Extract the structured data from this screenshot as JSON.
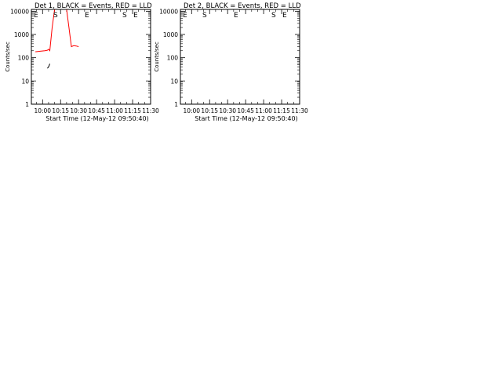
{
  "figure": {
    "ylabel": "Counts/sec",
    "xlabel": "Start Time (12-May-12 09:50:40)",
    "x_ticks": [
      "10:00",
      "10:15",
      "10:30",
      "10:45",
      "11:00",
      "11:15",
      "11:30"
    ],
    "y_ticks": [
      "1",
      "10",
      "100",
      "1000",
      "10000"
    ],
    "colors": {
      "events": "#000000",
      "lld": "#ff0000",
      "axis": "#000000",
      "background": "#ffffff"
    }
  },
  "chart_data": [
    {
      "type": "line",
      "title": "Det 1, BLACK = Events, RED = LLD",
      "xlabel": "Start Time (12-May-12 09:50:40)",
      "ylabel": "Counts/sec",
      "xlim": [
        "09:50:40",
        "11:30"
      ],
      "ylim": [
        1,
        12000
      ],
      "yscale": "log",
      "flags": [
        "E",
        "S",
        "E",
        "S",
        "E"
      ],
      "x": [
        "09:54",
        "09:58",
        "10:02",
        "10:04",
        "10:05",
        "10:06",
        "10:08",
        "10:10",
        "10:12",
        "10:14",
        "10:16",
        "10:18",
        "10:20",
        "10:22",
        "10:24",
        "10:26",
        "10:28",
        "10:30",
        "10:32",
        "10:34",
        "10:36",
        "10:40",
        "10:44",
        "10:48",
        "10:52",
        "10:56",
        "11:00",
        "11:01",
        "11:02",
        "11:03",
        "11:04",
        "11:05",
        "11:06",
        "11:08",
        "11:10",
        "11:12",
        "11:14",
        "11:15"
      ],
      "series": [
        {
          "name": "Events",
          "values": [
            null,
            null,
            null,
            35,
            40,
            55,
            null,
            null,
            null,
            null,
            null,
            null,
            null,
            null,
            null,
            null,
            null,
            null,
            null,
            null,
            null,
            null,
            null,
            null,
            null,
            null,
            null,
            null,
            null,
            null,
            null,
            null,
            null,
            null,
            null,
            null,
            null,
            null
          ]
        },
        {
          "name": "LLD",
          "values": [
            180,
            190,
            200,
            210,
            230,
            200,
            2000,
            12000,
            12000,
            12000,
            12000,
            12000,
            12000,
            2000,
            300,
            330,
            320,
            300,
            null,
            null,
            null,
            null,
            null,
            null,
            null,
            null,
            null,
            null,
            null,
            null,
            null,
            null,
            null,
            null,
            null,
            null,
            null,
            null
          ]
        }
      ]
    },
    {
      "type": "line",
      "title": "Det 2, BLACK = Events, RED = LLD",
      "xlabel": "Start Time (12-May-12 09:50:40)",
      "ylabel": "Counts/sec",
      "xlim": [
        "09:50:40",
        "11:30"
      ],
      "ylim": [
        1,
        12000
      ],
      "yscale": "log",
      "flags": [
        "E",
        "S",
        "E",
        "S",
        "E"
      ]
    }
  ]
}
